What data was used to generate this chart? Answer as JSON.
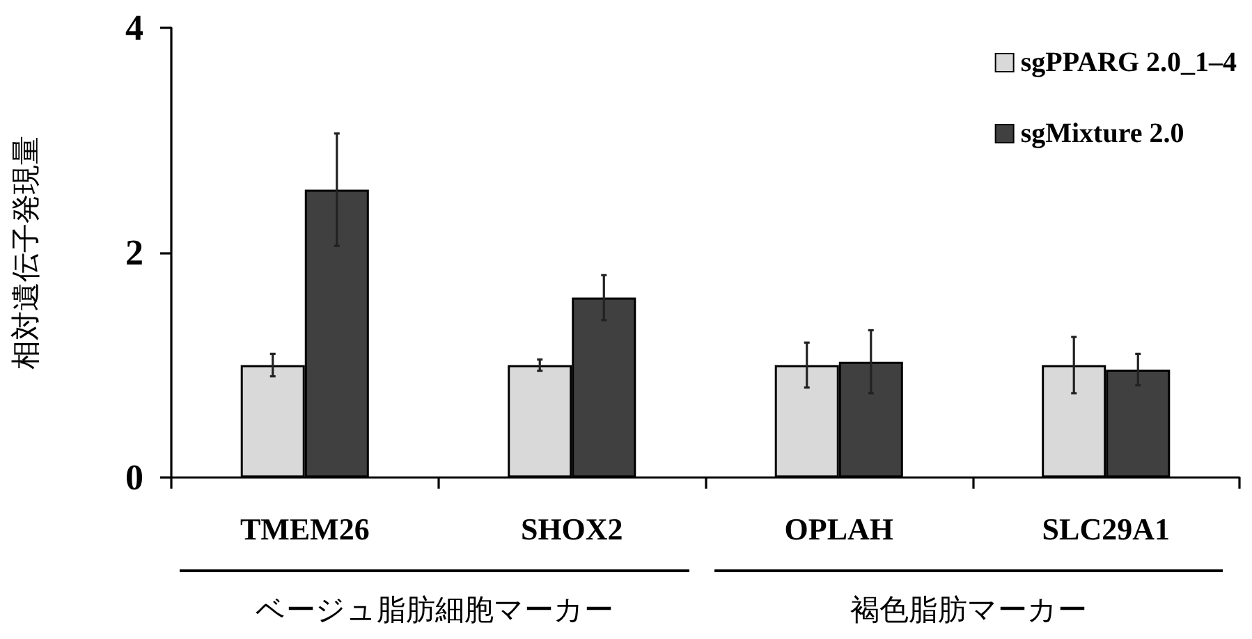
{
  "chart_data": {
    "type": "bar",
    "ylabel": "相対遺伝子発現量",
    "categories": [
      "TMEM26",
      "SHOX2",
      "OPLAH",
      "SLC29A1"
    ],
    "series": [
      {
        "name": "sgPPARG 2.0_1–4",
        "color": "#d9d9d9",
        "values": [
          1.0,
          1.0,
          1.0,
          1.0
        ],
        "errors": [
          0.1,
          0.05,
          0.2,
          0.25
        ]
      },
      {
        "name": "sgMixture 2.0",
        "color": "#404040",
        "values": [
          2.56,
          1.6,
          1.03,
          0.96
        ],
        "errors": [
          0.5,
          0.2,
          0.28,
          0.14
        ]
      }
    ],
    "ylim": [
      0,
      4
    ],
    "yticks": [
      0,
      2,
      4
    ],
    "grid": false,
    "legend": "top right",
    "annotations": [
      "ベージュ脂肪細胞マーカー",
      "褐色脂肪マーカー"
    ]
  }
}
